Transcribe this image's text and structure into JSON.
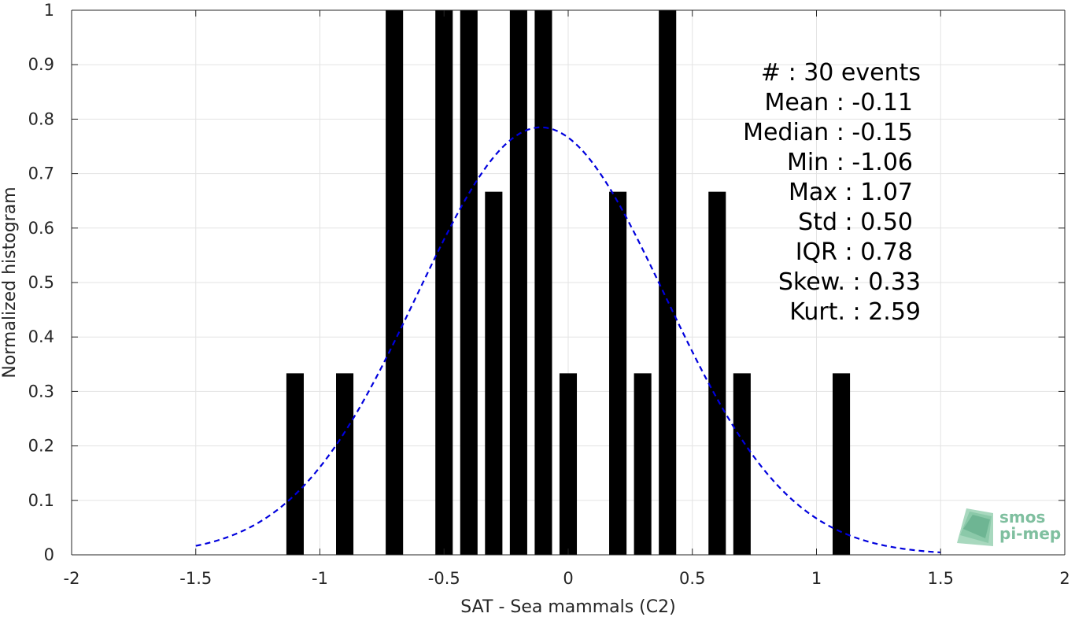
{
  "chart_data": {
    "type": "bar",
    "xlabel": "SAT - Sea mammals (C2)",
    "ylabel": "Normalized histogram",
    "xlim": [
      -2,
      2
    ],
    "ylim": [
      0,
      1
    ],
    "xticks": [
      -2,
      -1.5,
      -1,
      -0.5,
      0,
      0.5,
      1,
      1.5,
      2
    ],
    "xtick_labels": [
      "-2",
      "-1.5",
      "-1",
      "-0.5",
      "0",
      "0.5",
      "1",
      "1.5",
      "2"
    ],
    "yticks": [
      0,
      0.1,
      0.2,
      0.3,
      0.4,
      0.5,
      0.6,
      0.7,
      0.8,
      0.9,
      1
    ],
    "ytick_labels": [
      "0",
      "0.1",
      "0.2",
      "0.3",
      "0.4",
      "0.5",
      "0.6",
      "0.7",
      "0.8",
      "0.9",
      "1"
    ],
    "grid": true,
    "bar_width": 0.07,
    "bar_color": "#000000",
    "bars": [
      {
        "x": -1.1,
        "y": 0.3333
      },
      {
        "x": -0.9,
        "y": 0.3333
      },
      {
        "x": -0.7,
        "y": 1.0
      },
      {
        "x": -0.5,
        "y": 1.0
      },
      {
        "x": -0.4,
        "y": 1.0
      },
      {
        "x": -0.3,
        "y": 0.6667
      },
      {
        "x": -0.2,
        "y": 1.0
      },
      {
        "x": -0.1,
        "y": 1.0
      },
      {
        "x": 0.0,
        "y": 0.3333
      },
      {
        "x": 0.2,
        "y": 0.6667
      },
      {
        "x": 0.3,
        "y": 0.3333
      },
      {
        "x": 0.4,
        "y": 1.0
      },
      {
        "x": 0.6,
        "y": 0.6667
      },
      {
        "x": 0.7,
        "y": 0.3333
      },
      {
        "x": 1.1,
        "y": 0.3333
      }
    ],
    "fit_curve": {
      "style": "dashed",
      "color": "#0000dd",
      "mean": -0.11,
      "std": 0.5,
      "peak": 0.785,
      "x_range": [
        -1.5,
        1.5
      ]
    },
    "stats": [
      {
        "label": "#  : 30 events"
      },
      {
        "label": "Mean : -0.11"
      },
      {
        "label": "Median : -0.15"
      },
      {
        "label": "Min : -1.06"
      },
      {
        "label": "Max : 1.07"
      },
      {
        "label": "Std : 0.50"
      },
      {
        "label": "IQR : 0.78"
      },
      {
        "label": "Skew. : 0.33"
      },
      {
        "label": "Kurt. : 2.59"
      }
    ]
  },
  "logo": {
    "line1": "smos",
    "line2": "pi-mep",
    "color": "#7fbf9f"
  }
}
